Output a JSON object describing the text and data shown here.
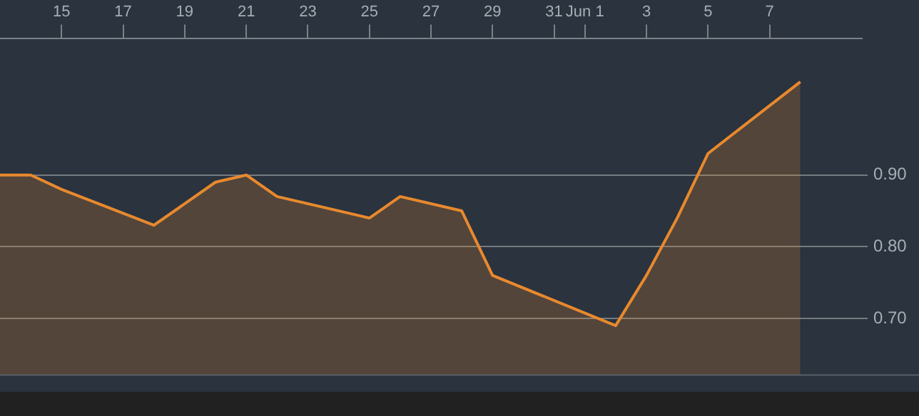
{
  "chart_data": {
    "type": "area",
    "x": [
      "--05-13",
      "--05-14",
      "--05-15",
      "--05-18",
      "--05-20",
      "--05-21",
      "--05-22",
      "--05-25",
      "--05-26",
      "--05-28",
      "--05-29",
      "--06-02",
      "--06-03",
      "--06-04",
      "--06-05",
      "--06-08"
    ],
    "series": [
      {
        "color": "#e8892e",
        "values": [
          0.9,
          0.9,
          0.88,
          0.83,
          0.89,
          0.9,
          0.87,
          0.84,
          0.87,
          0.85,
          0.76,
          0.69,
          0.76,
          0.84,
          0.93,
          1.03
        ]
      }
    ],
    "xlim": [
      "--05-13",
      "--06-10"
    ],
    "xticks": [
      {
        "value": "--05-15",
        "label": "15"
      },
      {
        "value": "--05-17",
        "label": "17"
      },
      {
        "value": "--05-19",
        "label": "19"
      },
      {
        "value": "--05-21",
        "label": "21"
      },
      {
        "value": "--05-23",
        "label": "23"
      },
      {
        "value": "--05-25",
        "label": "25"
      },
      {
        "value": "--05-27",
        "label": "27"
      },
      {
        "value": "--05-29",
        "label": "29"
      },
      {
        "value": "--05-31",
        "label": "31"
      },
      {
        "value": "--06-01",
        "label": "Jun 1"
      },
      {
        "value": "--06-03",
        "label": "3"
      },
      {
        "value": "--06-05",
        "label": "5"
      },
      {
        "value": "--06-07",
        "label": "7"
      }
    ],
    "ylim": [
      0.62,
      1.09
    ],
    "yticks": [
      {
        "value": 0.7,
        "label": "0.70"
      },
      {
        "value": 0.8,
        "label": "0.80"
      },
      {
        "value": 0.9,
        "label": "0.90"
      }
    ],
    "grid": "y",
    "legend": false,
    "marker": "none",
    "line_style": "solid"
  }
}
